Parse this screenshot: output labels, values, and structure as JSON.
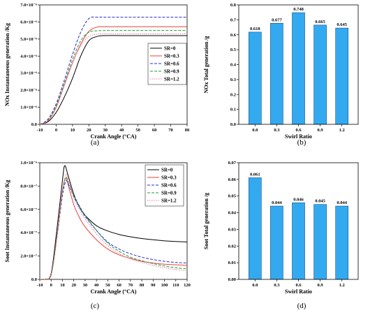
{
  "panel_tags": [
    "(a)",
    "(b)",
    "(c)",
    "(d)"
  ],
  "chart_data": [
    {
      "type": "line",
      "panel": "(a)",
      "xlabel": "Crank Angle (°CA)",
      "ylabel": "NOx Instantaneous generation /Kg",
      "xlim": [
        -10,
        80
      ],
      "ylim": [
        0,
        7e-06
      ],
      "x_ticks": [
        -10,
        0,
        10,
        20,
        30,
        40,
        50,
        60,
        70,
        80
      ],
      "y_ticks": [
        0.0,
        1e-06,
        2e-06,
        3e-06,
        4e-06,
        5e-06,
        6e-06,
        7e-06
      ],
      "y_tick_labels": [
        "0.0",
        "1.0×10⁻⁶",
        "2.0×10⁻⁶",
        "3.0×10⁻⁶",
        "4.0×10⁻⁶",
        "5.0×10⁻⁶",
        "6.0×10⁻⁶",
        "7.0×10⁻⁶"
      ],
      "legend_position": "right",
      "series": [
        {
          "name": "SR=0",
          "color": "#000000",
          "dash": "",
          "x": [
            -10,
            -5,
            0,
            5,
            10,
            15,
            20,
            25,
            30,
            40,
            50,
            60,
            70,
            80
          ],
          "y": [
            0,
            1.5e-07,
            7e-07,
            1.6e-06,
            2.7e-06,
            4e-06,
            4.9e-06,
            5.15e-06,
            5.2e-06,
            5.2e-06,
            5.2e-06,
            5.2e-06,
            5.2e-06,
            5.2e-06
          ]
        },
        {
          "name": "SR=0.3",
          "color": "#e8413c",
          "dash": "",
          "x": [
            -10,
            -5,
            0,
            5,
            10,
            15,
            20,
            25,
            30,
            40,
            50,
            60,
            70,
            80
          ],
          "y": [
            0,
            2e-07,
            1e-06,
            2.3e-06,
            3.6e-06,
            4.7e-06,
            5.45e-06,
            5.7e-06,
            5.72e-06,
            5.72e-06,
            5.72e-06,
            5.72e-06,
            5.72e-06,
            5.72e-06
          ]
        },
        {
          "name": "SR=0.6",
          "color": "#2c2ccf",
          "dash": "4,2",
          "x": [
            -10,
            -5,
            0,
            5,
            10,
            15,
            20,
            25,
            30,
            40,
            50,
            60,
            70,
            80
          ],
          "y": [
            0,
            3e-07,
            1.2e-06,
            2.6e-06,
            4.1e-06,
            5.4e-06,
            6.2e-06,
            6.28e-06,
            6.28e-06,
            6.28e-06,
            6.28e-06,
            6.28e-06,
            6.28e-06,
            6.28e-06
          ]
        },
        {
          "name": "SR=0.9",
          "color": "#1f9e32",
          "dash": "4,2",
          "x": [
            -10,
            -5,
            0,
            5,
            10,
            15,
            20,
            25,
            30,
            40,
            50,
            60,
            70,
            80
          ],
          "y": [
            0,
            2.5e-07,
            1.1e-06,
            2.4e-06,
            3.8e-06,
            4.9e-06,
            5.4e-06,
            5.48e-06,
            5.5e-06,
            5.5e-06,
            5.5e-06,
            5.5e-06,
            5.5e-06,
            5.5e-06
          ]
        },
        {
          "name": "SR=1.2",
          "color": "#e87aa0",
          "dash": "1.5,1.5",
          "x": [
            -10,
            -5,
            0,
            5,
            10,
            15,
            20,
            25,
            30,
            40,
            50,
            60,
            70,
            80
          ],
          "y": [
            0,
            2.2e-07,
            1e-06,
            2.3e-06,
            3.6e-06,
            4.6e-06,
            5.15e-06,
            5.28e-06,
            5.3e-06,
            5.3e-06,
            5.3e-06,
            5.3e-06,
            5.3e-06,
            5.3e-06
          ]
        }
      ]
    },
    {
      "type": "bar",
      "panel": "(b)",
      "xlabel": "Swirl Ratio",
      "ylabel": "NOx Total generation /g",
      "ylim": [
        0,
        0.8
      ],
      "y_ticks": [
        "0.0",
        "0.1",
        "0.2",
        "0.3",
        "0.4",
        "0.5",
        "0.6",
        "0.7",
        "0.8"
      ],
      "categories": [
        "0.0",
        "0.3",
        "0.6",
        "0.9",
        "1.2"
      ],
      "values": [
        0.618,
        0.677,
        0.748,
        0.665,
        0.645
      ],
      "data_labels": [
        "0.618",
        "0.677",
        "0.748",
        "0.665",
        "0.645"
      ],
      "bar_color": "#33aaf0"
    },
    {
      "type": "line",
      "panel": "(c)",
      "xlabel": "Crank Angle (°CA)",
      "ylabel": "Soot Instantaneous generation /Kg",
      "xlim": [
        -10,
        120
      ],
      "ylim": [
        0,
        1e-06
      ],
      "x_ticks": [
        -10,
        0,
        10,
        20,
        30,
        40,
        50,
        60,
        70,
        80,
        90,
        100,
        110,
        120
      ],
      "y_ticks": [
        0,
        2e-07,
        4e-07,
        6e-07,
        8e-07,
        1e-06
      ],
      "y_tick_labels": [
        "0.0",
        "2.0×10⁻⁷",
        "4.0×10⁻⁷",
        "6.0×10⁻⁷",
        "8.0×10⁻⁷",
        "1.0×10⁻⁶"
      ],
      "legend_position": "top-right",
      "series": [
        {
          "name": "SR=0",
          "color": "#000000",
          "dash": "",
          "x": [
            -10,
            -5,
            0,
            5,
            10,
            12,
            15,
            20,
            25,
            30,
            40,
            50,
            60,
            70,
            80,
            90,
            100,
            110,
            120
          ],
          "y": [
            0,
            2e-09,
            5e-08,
            4.2e-07,
            8.5e-07,
            9.75e-07,
            8.9e-07,
            7.3e-07,
            6.2e-07,
            5.5e-07,
            4.6e-07,
            4.15e-07,
            3.85e-07,
            3.65e-07,
            3.5e-07,
            3.4e-07,
            3.3e-07,
            3.25e-07,
            3.2e-07
          ]
        },
        {
          "name": "SR=0.3",
          "color": "#e8413c",
          "dash": "",
          "x": [
            -10,
            -5,
            0,
            5,
            10,
            13,
            15,
            20,
            25,
            30,
            40,
            50,
            60,
            70,
            80,
            90,
            100,
            110,
            120
          ],
          "y": [
            0,
            2e-09,
            4e-08,
            3.6e-07,
            7.6e-07,
            8.7e-07,
            8.1e-07,
            6.4e-07,
            5.3e-07,
            4.5e-07,
            3.4e-07,
            2.6e-07,
            2.1e-07,
            1.8e-07,
            1.55e-07,
            1.4e-07,
            1.3e-07,
            1.25e-07,
            1.2e-07
          ]
        },
        {
          "name": "SR=0.6",
          "color": "#2c2ccf",
          "dash": "4,2",
          "x": [
            -10,
            -5,
            0,
            5,
            10,
            13,
            15,
            20,
            25,
            30,
            40,
            50,
            60,
            70,
            80,
            90,
            100,
            110,
            120
          ],
          "y": [
            0,
            2e-09,
            4e-08,
            3.5e-07,
            7.2e-07,
            8.4e-07,
            8.2e-07,
            7.1e-07,
            6.2e-07,
            5.4e-07,
            4.2e-07,
            3.2e-07,
            2.6e-07,
            2.2e-07,
            1.9e-07,
            1.7e-07,
            1.55e-07,
            1.45e-07,
            1.4e-07
          ]
        },
        {
          "name": "SR=0.9",
          "color": "#1f9e32",
          "dash": "4,2",
          "x": [
            -10,
            -5,
            0,
            5,
            10,
            13,
            15,
            20,
            25,
            30,
            40,
            50,
            60,
            70,
            80,
            90,
            100,
            110,
            120
          ],
          "y": [
            0,
            2e-09,
            4e-08,
            3.6e-07,
            7.5e-07,
            8.7e-07,
            8.4e-07,
            7.2e-07,
            6.3e-07,
            5.5e-07,
            4.2e-07,
            3.1e-07,
            2.4e-07,
            1.9e-07,
            1.6e-07,
            1.35e-07,
            1.15e-07,
            1e-07,
            9e-08
          ]
        },
        {
          "name": "SR=1.2",
          "color": "#e87aa0",
          "dash": "1.5,1.5",
          "x": [
            -10,
            -5,
            0,
            5,
            10,
            13,
            15,
            20,
            25,
            30,
            40,
            50,
            60,
            70,
            80,
            90,
            100,
            110,
            120
          ],
          "y": [
            0,
            2e-09,
            4e-08,
            3.5e-07,
            7.6e-07,
            9e-07,
            8.6e-07,
            7e-07,
            6e-07,
            5.2e-07,
            3.9e-07,
            2.9e-07,
            2.2e-07,
            1.75e-07,
            1.45e-07,
            1.2e-07,
            1e-07,
            8.5e-08,
            7.5e-08
          ]
        }
      ]
    },
    {
      "type": "bar",
      "panel": "(d)",
      "xlabel": "Swirl Ratio",
      "ylabel": "Soot Total generation /g",
      "ylim": [
        0,
        0.07
      ],
      "y_ticks": [
        "0.00",
        "0.01",
        "0.02",
        "0.03",
        "0.04",
        "0.05",
        "0.06",
        "0.07"
      ],
      "categories": [
        "0.0",
        "0.3",
        "0.6",
        "0.9",
        "1.2"
      ],
      "values": [
        0.061,
        0.044,
        0.046,
        0.045,
        0.044
      ],
      "data_labels": [
        "0.061",
        "0.044",
        "0.046",
        "0.045",
        "0.044"
      ],
      "bar_color": "#33aaf0"
    }
  ]
}
